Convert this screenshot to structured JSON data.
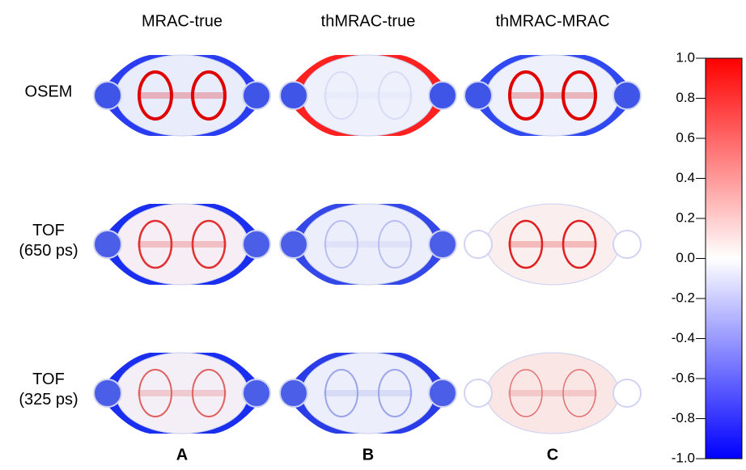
{
  "columns": [
    "MRAC-true",
    "thMRAC-true",
    "thMRAC-MRAC"
  ],
  "rows": [
    [
      "OSEM"
    ],
    [
      "TOF",
      "(650 ps)"
    ],
    [
      "TOF",
      "(325 ps)"
    ]
  ],
  "panels": [
    "A",
    "B",
    "C"
  ],
  "colorbar": {
    "lim": [
      -1,
      1
    ],
    "ticks": [
      {
        "value": 1,
        "label": "1.0"
      },
      0.8,
      0.6,
      0.4,
      0.2,
      {
        "value": 0,
        "label": "0.0"
      },
      -0.2,
      -0.4,
      -0.6,
      -0.8,
      {
        "value": -1,
        "label": "-1.0"
      }
    ],
    "colors": [
      "#0000ff",
      "#ffffff",
      "#ff0000"
    ]
  }
}
